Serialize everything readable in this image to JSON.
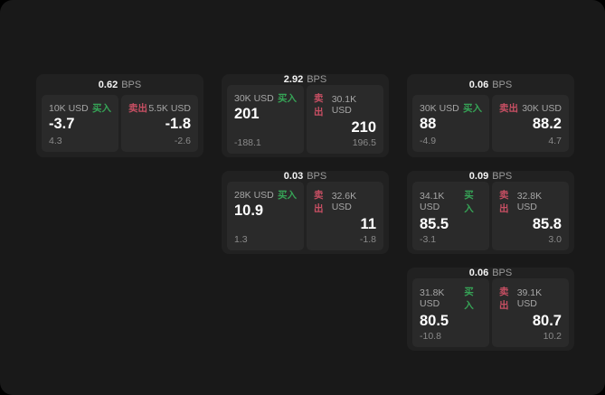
{
  "labels": {
    "bps_unit": "BPS",
    "buy": "买入",
    "sell": "卖出"
  },
  "colors": {
    "buy": "#36a356",
    "sell": "#c74f63",
    "page_background": "#191919",
    "card_background": "#212121",
    "panel_background": "#2a2a2a"
  },
  "cards": [
    {
      "bps": "0.62",
      "buy": {
        "amount": "10K USD",
        "value": "-3.7",
        "sub": "4.3"
      },
      "sell": {
        "amount": "5.5K USD",
        "value": "-1.8",
        "sub": "-2.6"
      }
    },
    {
      "bps": "2.92",
      "buy": {
        "amount": "30K USD",
        "value": "201",
        "sub": "-188.1"
      },
      "sell": {
        "amount": "30.1K USD",
        "value": "210",
        "sub": "196.5"
      }
    },
    {
      "bps": "0.06",
      "buy": {
        "amount": "30K USD",
        "value": "88",
        "sub": "-4.9"
      },
      "sell": {
        "amount": "30K USD",
        "value": "88.2",
        "sub": "4.7"
      }
    },
    {
      "bps": "0.03",
      "buy": {
        "amount": "28K USD",
        "value": "10.9",
        "sub": "1.3"
      },
      "sell": {
        "amount": "32.6K USD",
        "value": "11",
        "sub": "-1.8"
      }
    },
    {
      "bps": "0.09",
      "buy": {
        "amount": "34.1K USD",
        "value": "85.5",
        "sub": "-3.1"
      },
      "sell": {
        "amount": "32.8K USD",
        "value": "85.8",
        "sub": "3.0"
      }
    },
    {
      "bps": "0.06",
      "buy": {
        "amount": "31.8K USD",
        "value": "80.5",
        "sub": "-10.8"
      },
      "sell": {
        "amount": "39.1K USD",
        "value": "80.7",
        "sub": "10.2"
      }
    }
  ]
}
